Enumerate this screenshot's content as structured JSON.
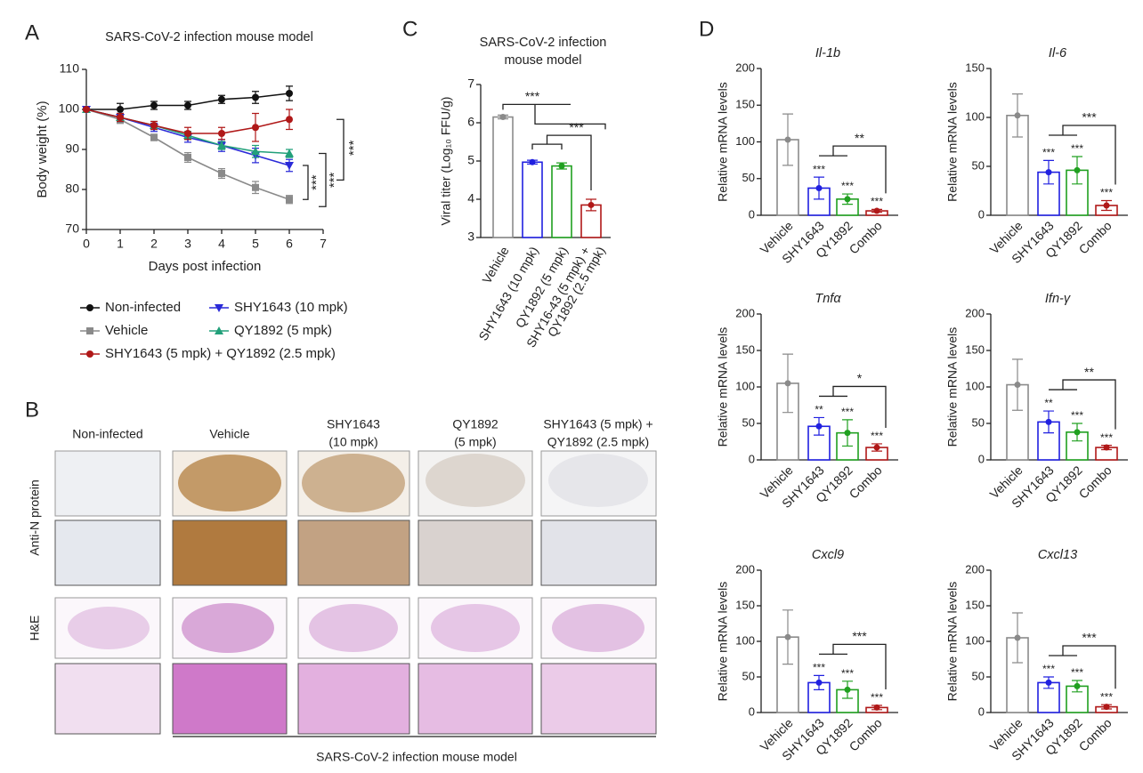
{
  "panel_letters": [
    "A",
    "B",
    "C",
    "D"
  ],
  "panel_b": {
    "columns": [
      [
        "Non-infected"
      ],
      [
        "Vehicle"
      ],
      [
        "SHY1643",
        "(10 mpk)"
      ],
      [
        "QY1892",
        "(5 mpk)"
      ],
      [
        "SHY1643 (5 mpk) +",
        "QY1892 (2.5 mpk)"
      ]
    ],
    "rows": [
      "Anti-N protein",
      "H&E"
    ],
    "footer": "SARS-CoV-2 infection mouse model"
  },
  "chart_data": [
    {
      "type": "line",
      "title": "SARS-CoV-2 infection mouse model",
      "x_label": "Days post infection",
      "y_label": "Body weight (%)",
      "x": [
        0,
        1,
        2,
        3,
        4,
        5,
        6
      ],
      "xlim": [
        0,
        7
      ],
      "xticks": [
        0,
        1,
        2,
        3,
        4,
        5,
        6,
        7
      ],
      "ylim": [
        70,
        110
      ],
      "yticks": [
        70,
        80,
        90,
        100,
        110
      ],
      "series": [
        {
          "name": "Non-infected",
          "color": "#111111",
          "marker": "circle",
          "values": [
            100,
            100,
            101,
            101,
            102.5,
            103,
            104
          ],
          "errors": [
            0,
            1.5,
            1,
            1,
            1,
            1.5,
            1.8
          ]
        },
        {
          "name": "Vehicle",
          "color": "#8a8a8a",
          "marker": "square",
          "values": [
            100,
            97.5,
            93,
            88,
            84,
            80.5,
            77.5
          ],
          "errors": [
            0,
            1,
            0.8,
            1.2,
            1.2,
            1.5,
            1
          ]
        },
        {
          "name": "SHY1643 (10 mpk)",
          "color": "#2a2ad8",
          "marker": "triangle-down",
          "values": [
            100,
            98,
            95.5,
            93,
            91,
            88.5,
            86
          ],
          "errors": [
            0,
            1,
            1,
            1.2,
            1.5,
            1.8,
            1.5
          ]
        },
        {
          "name": "QY1892 (5 mpk)",
          "color": "#22a07a",
          "marker": "triangle-up",
          "values": [
            100,
            98,
            96,
            93.5,
            91,
            89.5,
            89
          ],
          "errors": [
            0,
            1,
            1,
            1,
            1,
            1.5,
            1
          ]
        },
        {
          "name": "SHY1643 (5 mpk) + QY1892 (2.5 mpk)",
          "color": "#b01818",
          "marker": "circle",
          "values": [
            100,
            98,
            96,
            94,
            94,
            95.5,
            97.5
          ],
          "errors": [
            0,
            1,
            1,
            1.5,
            1.5,
            3.5,
            2.5
          ]
        }
      ],
      "annotations": [
        "***",
        "***",
        "***"
      ]
    },
    {
      "type": "bar",
      "title": [
        "SARS-CoV-2 infection",
        "mouse model"
      ],
      "y_label": "Viral titer (Log₁₀ FFU/g)",
      "categories": [
        "Vehicle",
        "SHY1643 (10 mpk)",
        "QY1892 (5 mpk)",
        [
          "SHY16-43 (5 mpk) +",
          "QY1892 (2.5 mpk)"
        ]
      ],
      "values": [
        6.15,
        4.97,
        4.87,
        3.85
      ],
      "errors": [
        0.05,
        0.05,
        0.08,
        0.15
      ],
      "colors": [
        "#8a8a8a",
        "#2020e0",
        "#20a020",
        "#b01818"
      ],
      "ylim": [
        3,
        7
      ],
      "yticks": [
        3,
        4,
        5,
        6,
        7
      ],
      "annotations": [
        "***",
        "***"
      ]
    },
    {
      "type": "bar",
      "title": "Il-1b",
      "y_label": "Relative mRNA  levels",
      "categories": [
        "Vehicle",
        "SHY1643",
        "QY1892",
        "Combo"
      ],
      "values": [
        103,
        37,
        22,
        6
      ],
      "errors": [
        35,
        15,
        7,
        2
      ],
      "colors": [
        "#8a8a8a",
        "#2020e0",
        "#20a020",
        "#b01818"
      ],
      "ylim": [
        0,
        200
      ],
      "yticks": [
        0,
        50,
        100,
        150,
        200
      ],
      "significance": [
        null,
        "***",
        "***",
        "***"
      ],
      "bracket_label": "**"
    },
    {
      "type": "bar",
      "title": "Il-6",
      "y_label": "Relative mRNA  levels",
      "categories": [
        "Vehicle",
        "SHY1643",
        "QY1892",
        "Combo"
      ],
      "values": [
        102,
        44,
        46,
        10
      ],
      "errors": [
        22,
        12,
        14,
        5
      ],
      "colors": [
        "#8a8a8a",
        "#2020e0",
        "#20a020",
        "#b01818"
      ],
      "ylim": [
        0,
        150
      ],
      "yticks": [
        0,
        50,
        100,
        150
      ],
      "significance": [
        null,
        "***",
        "***",
        "***"
      ],
      "bracket_label": "***"
    },
    {
      "type": "bar",
      "title": "Tnfα",
      "y_label": "Relative mRNA  levels",
      "categories": [
        "Vehicle",
        "SHY1643",
        "QY1892",
        "Combo"
      ],
      "values": [
        105,
        46,
        37,
        17
      ],
      "errors": [
        40,
        12,
        18,
        5
      ],
      "colors": [
        "#8a8a8a",
        "#2020e0",
        "#20a020",
        "#b01818"
      ],
      "ylim": [
        0,
        200
      ],
      "yticks": [
        0,
        50,
        100,
        150,
        200
      ],
      "significance": [
        null,
        "**",
        "***",
        "***"
      ],
      "bracket_label": "*"
    },
    {
      "type": "bar",
      "title": "Ifn-γ",
      "y_label": "Relative mRNA  levels",
      "categories": [
        "Vehicle",
        "SHY1643",
        "QY1892",
        "Combo"
      ],
      "values": [
        103,
        52,
        38,
        17
      ],
      "errors": [
        35,
        15,
        12,
        3
      ],
      "colors": [
        "#8a8a8a",
        "#2020e0",
        "#20a020",
        "#b01818"
      ],
      "ylim": [
        0,
        200
      ],
      "yticks": [
        0,
        50,
        100,
        150,
        200
      ],
      "significance": [
        null,
        "**",
        "***",
        "***"
      ],
      "bracket_label": "**"
    },
    {
      "type": "bar",
      "title": "Cxcl9",
      "y_label": "Relative mRNA  levels",
      "categories": [
        "Vehicle",
        "SHY1643",
        "QY1892",
        "Combo"
      ],
      "values": [
        106,
        42,
        32,
        7
      ],
      "errors": [
        38,
        10,
        12,
        3
      ],
      "colors": [
        "#8a8a8a",
        "#2020e0",
        "#20a020",
        "#b01818"
      ],
      "ylim": [
        0,
        200
      ],
      "yticks": [
        0,
        50,
        100,
        150,
        200
      ],
      "significance": [
        null,
        "***",
        "***",
        "***"
      ],
      "bracket_label": "***"
    },
    {
      "type": "bar",
      "title": "Cxcl13",
      "y_label": "Relative mRNA  levels",
      "categories": [
        "Vehicle",
        "SHY1643",
        "QY1892",
        "Combo"
      ],
      "values": [
        105,
        42,
        37,
        8
      ],
      "errors": [
        35,
        8,
        8,
        3
      ],
      "colors": [
        "#8a8a8a",
        "#2020e0",
        "#20a020",
        "#b01818"
      ],
      "ylim": [
        0,
        200
      ],
      "yticks": [
        0,
        50,
        100,
        150,
        200
      ],
      "significance": [
        null,
        "***",
        "***",
        "***"
      ],
      "bracket_label": "***"
    }
  ]
}
